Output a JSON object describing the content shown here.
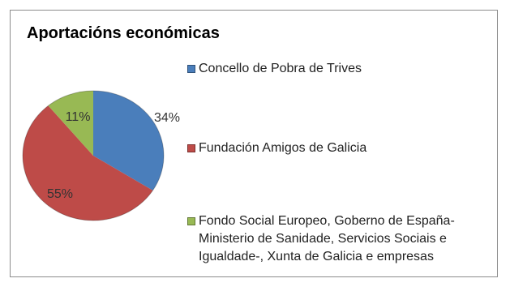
{
  "chart_data": {
    "type": "pie",
    "title": "Aportacións económicas",
    "legend_position": "right",
    "slices": [
      {
        "label": "Concello de Pobra de Trives",
        "value": 34,
        "value_label": "34%",
        "color": "#4a7ebb"
      },
      {
        "label": "Fundación Amigos de Galicia",
        "value": 55,
        "value_label": "55%",
        "color": "#be4b48"
      },
      {
        "label": "Fondo Social Europeo, Goberno de España-Ministerio de Sanidade, Servicios Sociais e Igualdade-, Xunta de Galicia e empresas",
        "value": 11,
        "value_label": "11%",
        "color": "#98b954"
      }
    ]
  }
}
